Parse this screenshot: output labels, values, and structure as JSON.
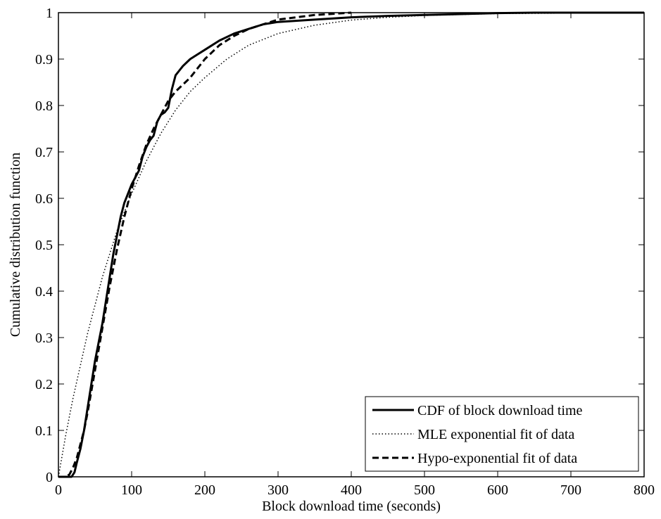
{
  "chart_data": {
    "type": "line",
    "title": "",
    "xlabel": "Block download time (seconds)",
    "ylabel": "Cumulative distribution function",
    "xlim": [
      0,
      800
    ],
    "ylim": [
      0,
      1
    ],
    "x_ticks": [
      "0",
      "100",
      "200",
      "300",
      "400",
      "500",
      "600",
      "700",
      "800"
    ],
    "y_ticks": [
      "0",
      "0.1",
      "0.2",
      "0.3",
      "0.4",
      "0.5",
      "0.6",
      "0.7",
      "0.8",
      "0.9",
      "1"
    ],
    "grid": false,
    "legend_position": "bottom-right",
    "series": [
      {
        "name": "CDF of block download time",
        "style": "solid",
        "color": "#000000",
        "x": [
          0,
          18,
          22,
          25,
          30,
          35,
          40,
          45,
          50,
          55,
          60,
          65,
          70,
          75,
          80,
          85,
          90,
          95,
          100,
          105,
          110,
          115,
          120,
          125,
          130,
          135,
          140,
          145,
          150,
          155,
          160,
          165,
          170,
          180,
          190,
          200,
          220,
          240,
          260,
          280,
          300,
          350,
          400,
          450,
          500,
          550,
          600,
          650,
          700,
          800
        ],
        "y": [
          0,
          0,
          0.01,
          0.03,
          0.06,
          0.1,
          0.15,
          0.2,
          0.25,
          0.29,
          0.33,
          0.38,
          0.43,
          0.48,
          0.52,
          0.56,
          0.59,
          0.61,
          0.63,
          0.645,
          0.66,
          0.69,
          0.71,
          0.725,
          0.735,
          0.765,
          0.78,
          0.785,
          0.795,
          0.835,
          0.865,
          0.875,
          0.885,
          0.9,
          0.91,
          0.92,
          0.94,
          0.955,
          0.965,
          0.975,
          0.98,
          0.985,
          0.99,
          0.993,
          0.995,
          0.997,
          0.999,
          1,
          1,
          1
        ]
      },
      {
        "name": "MLE exponential fit of data",
        "style": "dotted",
        "color": "#000000",
        "x": [
          0,
          10,
          20,
          30,
          40,
          50,
          60,
          70,
          80,
          90,
          100,
          120,
          140,
          160,
          180,
          200,
          230,
          260,
          300,
          350,
          400,
          450,
          500,
          550,
          600,
          700,
          800
        ],
        "y": [
          0,
          0.09,
          0.17,
          0.24,
          0.31,
          0.37,
          0.43,
          0.48,
          0.53,
          0.57,
          0.61,
          0.68,
          0.74,
          0.79,
          0.83,
          0.86,
          0.9,
          0.93,
          0.955,
          0.973,
          0.984,
          0.99,
          0.994,
          0.996,
          0.998,
          0.999,
          1
        ]
      },
      {
        "name": "Hypo-exponential fit of data",
        "style": "dashed",
        "color": "#000000",
        "x": [
          0,
          10,
          15,
          20,
          25,
          30,
          35,
          40,
          50,
          60,
          70,
          80,
          90,
          100,
          110,
          120,
          130,
          140,
          150,
          160,
          170,
          180,
          200,
          220,
          240,
          260,
          280,
          300,
          350,
          400
        ],
        "y": [
          0,
          0,
          0.005,
          0.02,
          0.04,
          0.07,
          0.1,
          0.14,
          0.23,
          0.32,
          0.41,
          0.49,
          0.56,
          0.62,
          0.67,
          0.715,
          0.75,
          0.78,
          0.81,
          0.83,
          0.845,
          0.86,
          0.9,
          0.93,
          0.95,
          0.965,
          0.975,
          0.985,
          0.995,
          1
        ]
      }
    ]
  }
}
